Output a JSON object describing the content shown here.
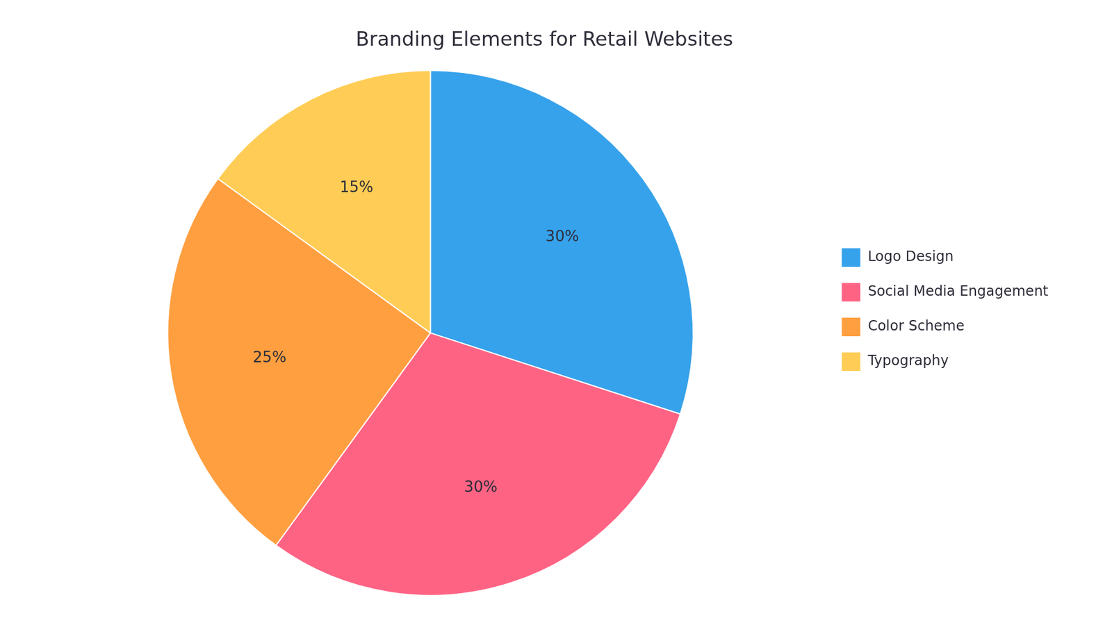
{
  "chart_data": {
    "type": "pie",
    "title": "Branding Elements for Retail Websites",
    "categories": [
      "Logo Design",
      "Social Media Engagement",
      "Color Scheme",
      "Typography"
    ],
    "values": [
      30,
      30,
      25,
      15
    ],
    "value_labels": [
      "30%",
      "30%",
      "25%",
      "15%"
    ],
    "data_labels": true,
    "legend": "right"
  }
}
